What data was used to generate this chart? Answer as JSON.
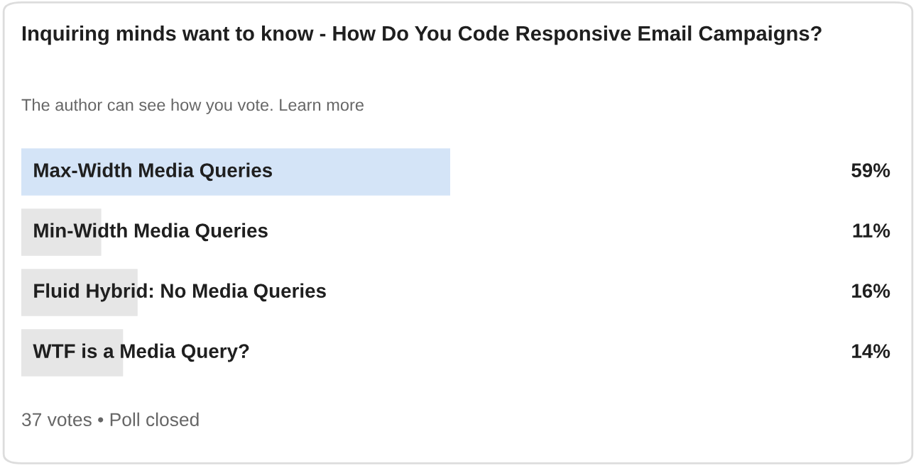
{
  "chart_data": {
    "type": "bar",
    "orientation": "horizontal",
    "title": "Inquiring minds want to know - How Do You Code Responsive Email Campaigns?",
    "subtitle": "The author can see how you vote. Learn more",
    "categories": [
      "Max-Width Media Queries",
      "Min-Width Media Queries",
      "Fluid Hybrid: No Media Queries",
      "WTF is a Media Query?"
    ],
    "values": [
      59,
      11,
      16,
      14
    ],
    "colors": [
      "#d4e4f7",
      "#e6e6e6",
      "#e6e6e6",
      "#e6e6e6"
    ],
    "value_labels": [
      "59%",
      "11%",
      "16%",
      "14%"
    ],
    "annotations": [
      "37 votes • Poll closed"
    ]
  }
}
